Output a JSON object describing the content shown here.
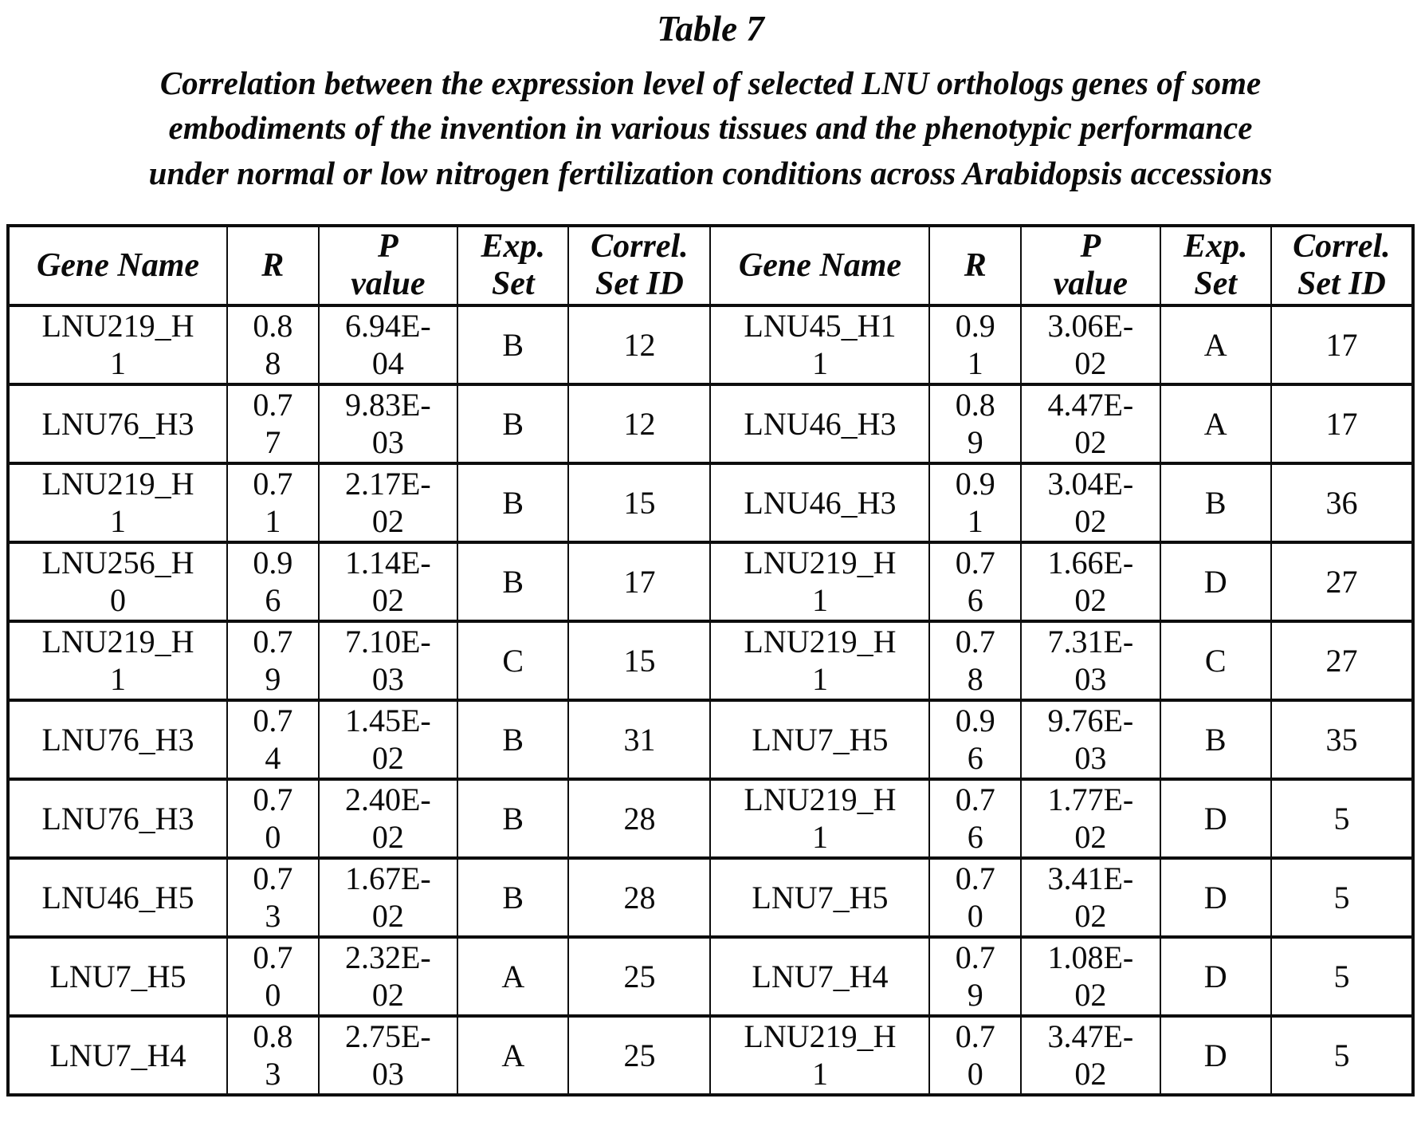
{
  "title": "Table 7",
  "subtitle": "Correlation between the expression level of selected LNU orthologs genes of some\nembodiments of the invention in various tissues and the phenotypic performance\nunder normal or low nitrogen fertilization conditions across Arabidopsis accessions",
  "colors": {
    "ink": "#0a0a0a",
    "line": "#0d0d0d",
    "background": "#ffffff"
  },
  "table": {
    "headers": [
      "Gene Name",
      "R",
      "P\nvalue",
      "Exp.\nSet",
      "Correl.\nSet ID",
      "Gene Name",
      "R",
      "P\nvalue",
      "Exp.\nSet",
      "Correl.\nSet ID"
    ],
    "rows": [
      [
        "LNU219_H\n1",
        "0.8\n8",
        "6.94E-\n04",
        "B",
        "12",
        "LNU45_H1\n1",
        "0.9\n1",
        "3.06E-\n02",
        "A",
        "17"
      ],
      [
        "LNU76_H3",
        "0.7\n7",
        "9.83E-\n03",
        "B",
        "12",
        "LNU46_H3",
        "0.8\n9",
        "4.47E-\n02",
        "A",
        "17"
      ],
      [
        "LNU219_H\n1",
        "0.7\n1",
        "2.17E-\n02",
        "B",
        "15",
        "LNU46_H3",
        "0.9\n1",
        "3.04E-\n02",
        "B",
        "36"
      ],
      [
        "LNU256_H\n0",
        "0.9\n6",
        "1.14E-\n02",
        "B",
        "17",
        "LNU219_H\n1",
        "0.7\n6",
        "1.66E-\n02",
        "D",
        "27"
      ],
      [
        "LNU219_H\n1",
        "0.7\n9",
        "7.10E-\n03",
        "C",
        "15",
        "LNU219_H\n1",
        "0.7\n8",
        "7.31E-\n03",
        "C",
        "27"
      ],
      [
        "LNU76_H3",
        "0.7\n4",
        "1.45E-\n02",
        "B",
        "31",
        "LNU7_H5",
        "0.9\n6",
        "9.76E-\n03",
        "B",
        "35"
      ],
      [
        "LNU76_H3",
        "0.7\n0",
        "2.40E-\n02",
        "B",
        "28",
        "LNU219_H\n1",
        "0.7\n6",
        "1.77E-\n02",
        "D",
        "5"
      ],
      [
        "LNU46_H5",
        "0.7\n3",
        "1.67E-\n02",
        "B",
        "28",
        "LNU7_H5",
        "0.7\n0",
        "3.41E-\n02",
        "D",
        "5"
      ],
      [
        "LNU7_H5",
        "0.7\n0",
        "2.32E-\n02",
        "A",
        "25",
        "LNU7_H4",
        "0.7\n9",
        "1.08E-\n02",
        "D",
        "5"
      ],
      [
        "LNU7_H4",
        "0.8\n3",
        "2.75E-\n03",
        "A",
        "25",
        "LNU219_H\n1",
        "0.7\n0",
        "3.47E-\n02",
        "D",
        "5"
      ]
    ]
  }
}
